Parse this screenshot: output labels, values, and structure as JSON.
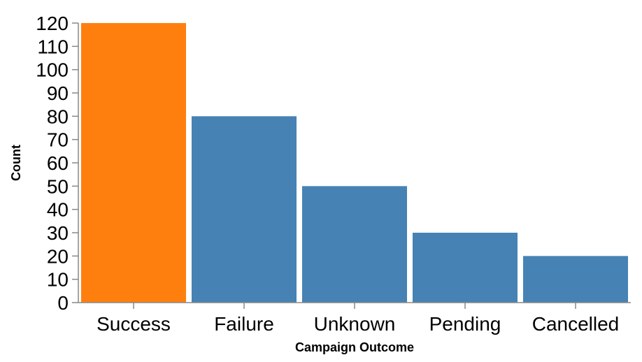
{
  "chart_data": {
    "type": "bar",
    "categories": [
      "Success",
      "Failure",
      "Unknown",
      "Pending",
      "Cancelled"
    ],
    "values": [
      120,
      80,
      50,
      30,
      20
    ],
    "highlight_index": 0,
    "colors": {
      "default": "#4682b4",
      "highlight": "#ff7f0e"
    },
    "xlabel": "Campaign Outcome",
    "ylabel": "Count",
    "ylim": [
      0,
      120
    ],
    "yticks": [
      0,
      10,
      20,
      30,
      40,
      50,
      60,
      70,
      80,
      90,
      100,
      110,
      120
    ],
    "grid": false,
    "legend": "none"
  }
}
